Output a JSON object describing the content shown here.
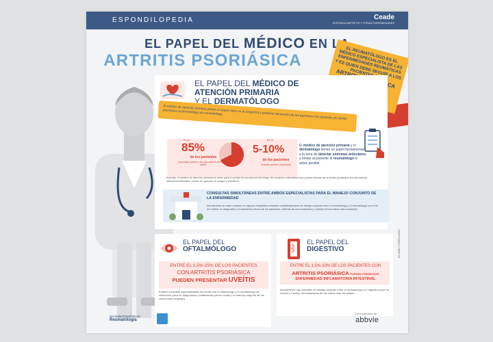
{
  "header": {
    "brand": "ESPONDILOPEDIA",
    "ceade": "Ceade",
    "ceade_sub": "ESPONDILOARTRITIS Y OTRAS ENFERMEDADES"
  },
  "title": {
    "line1_a": "EL PAPEL DEL ",
    "line1_big": "MÉDICO",
    "line1_b": " EN LA",
    "line2": "ARTRITIS PSORIÁSICA"
  },
  "sign": {
    "text_1": "EL REUMATÓLOGO ES EL MÉDICO ESPECIALISTA DE LAS ENFERMEDADES REUMÁTICAS Y ES QUIEN DEBE SEGUIR A LOS PACIENTES CON",
    "text_2": "ARTRITIS PSORIÁSICA"
  },
  "primary": {
    "title_1": "EL PAPEL DEL ",
    "title_1b": "MÉDICO DE",
    "title_2": "ATENCIÓN PRIMARIA",
    "title_3": "Y EL ",
    "title_3b": "DERMATÓLOGO",
    "ribbon": "El médico de atención primaria posee un papel clave en la sospecha y posterior derivación de los pacientes con psoriasis y/o artritis psoriásica al dermatólogo y/o reumatólogo.",
    "stat_left": {
      "pre": "En el",
      "value": "85%",
      "label": "de los pacientes",
      "note": "la psoriasis cutánea o de uñas aparece antes que la artritis"
    },
    "stat_right": {
      "pre": "En el",
      "value": "5-10%",
      "label": "de los pacientes",
      "note": "la artritis precede a la psoriasis"
    },
    "side_text_1": "El ",
    "side_text_b1": "médico de atención primaria",
    "side_text_2": " y el ",
    "side_text_b2": "dermatólogo",
    "side_text_3": " tienen un papel fundamental a la hora de ",
    "side_text_b3": "detectar síntomas articulares",
    "side_text_4": " y enviar al paciente al ",
    "side_text_b4": "reumatólogo",
    "side_text_5": " lo antes posible.",
    "ademas": "Además, el médico de atención primaria es clave para el control de los factores de riesgo del corazón y vasculares que pueden derivar de la artritis psoriásica: tensión arterial, sobrepeso/obesidad, niveles de glucosa en sangre y colesterol.",
    "consultas_title": "CONSULTAS SIMULTÁNEAS ENTRE AMBOS ESPECIALISTAS PARA EL MANEJO CONJUNTO DE LA ENFERMEDAD",
    "consultas_body": "Actualmente se están creando en algunos hospitales unidades multidisciplinares de trabajo conjunto entre el reumatólogo y el dermatólogo con el fin de realizar un diagnóstico y tratamiento precoz de los pacientes, además de una evaluación y manejo de los casos más complejos."
  },
  "oftalmologo": {
    "title_1": "EL PAPEL DEL",
    "title_2": "OFTALMÓLOGO",
    "line1": "ENTRE EL 1,5%-25% DE LOS PACIENTES",
    "line2": "CON ARTRITIS PSORIÁSICA",
    "line3a": "PUEDEN PRESENTAR ",
    "line3b": "UVEÍTIS",
    "body": "Existen consultas especializadas de uveítis con el oftalmólogo y el reumatólogo de referencia, para un diagnóstico y tratamiento precoz ocular y el manejo conjunto de los casos más complejos."
  },
  "digestivo": {
    "title_1": "EL PAPEL DEL",
    "title_2": "DIGESTIVO",
    "line1": "ENTRE EL 1,5%-33% DE LOS PACIENTES CON",
    "line2a": "ARTRITIS PSORIÁSICA ",
    "line2b": "PUEDEN PRESENTAR",
    "line3": "ENFERMEDAD INFLAMATORIA INTESTINAL",
    "body": "Actualmente hay unidades de trabajo conjunto entre el reumatólogo y el digestivo para un control y manejo del tratamiento de los casos más complejos."
  },
  "footer": {
    "ser_1": "Sociedad Española de",
    "ser_2": "Reumatología",
    "abbvie_note": "Con el patrocinio de",
    "abbvie": "abbvie",
    "code": "ES-ABBV-170069-feb2017"
  },
  "colors": {
    "navy": "#2e4a72",
    "light_blue": "#6aa5d5",
    "red": "#d63e2f",
    "yellow": "#f7b334"
  }
}
